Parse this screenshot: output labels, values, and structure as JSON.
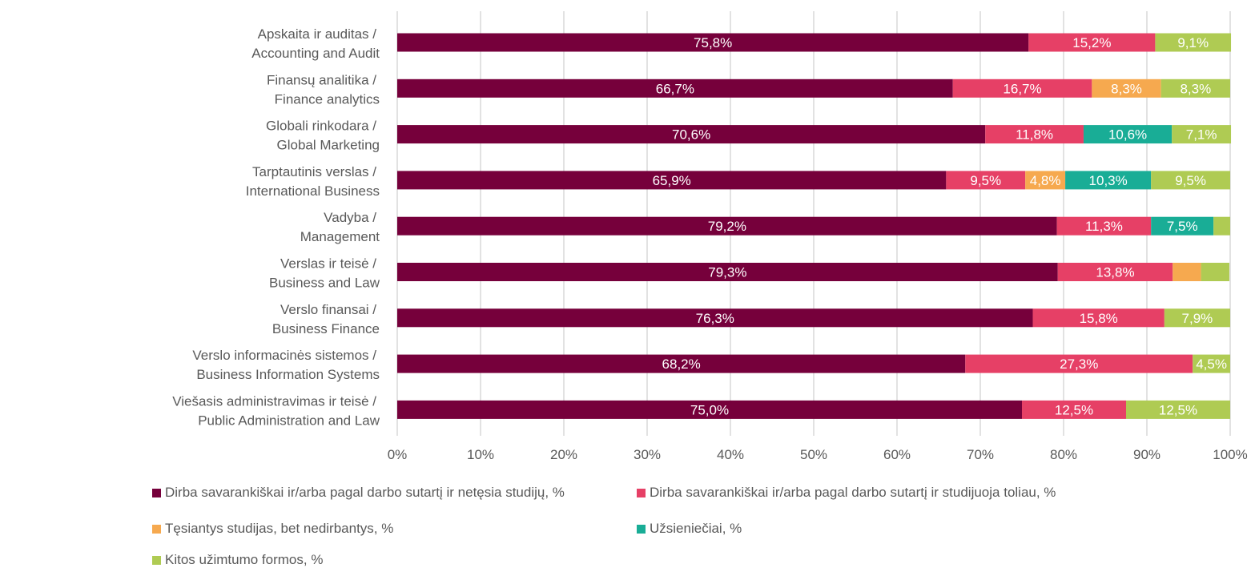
{
  "chart_data": {
    "type": "bar",
    "orientation": "horizontal",
    "stacked": true,
    "percent_stacked": true,
    "title": "",
    "xlabel": "",
    "ylabel": "",
    "xlim": [
      0,
      100
    ],
    "grid": true,
    "legend_position": "bottom",
    "x_ticks": [
      "0%",
      "10%",
      "20%",
      "30%",
      "40%",
      "50%",
      "60%",
      "70%",
      "80%",
      "90%",
      "100%"
    ],
    "categories": [
      [
        "Apskaita ir auditas /",
        "Accounting and Audit"
      ],
      [
        "Finansų analitika /",
        "Finance analytics"
      ],
      [
        "Globali rinkodara /",
        "Global Marketing"
      ],
      [
        "Tarptautinis verslas /",
        "International Business"
      ],
      [
        "Vadyba /",
        "Management"
      ],
      [
        "Verslas ir teisė /",
        "Business and Law"
      ],
      [
        "Verslo finansai /",
        "Business Finance"
      ],
      [
        "Verslo informacinės sistemos /",
        "Business Information Systems"
      ],
      [
        "Viešasis administravimas ir teisė /",
        "Public Administration and Law"
      ]
    ],
    "series": [
      {
        "name": "Dirba savarankiškai ir/arba pagal darbo sutartį ir netęsia studijų, %",
        "color": "#76003b",
        "values": [
          75.8,
          66.7,
          70.6,
          65.9,
          79.2,
          79.3,
          76.3,
          68.2,
          75.0
        ],
        "labels": [
          "75,8%",
          "66,7%",
          "70,6%",
          "65,9%",
          "79,2%",
          "79,3%",
          "76,3%",
          "68,2%",
          "75,0%"
        ]
      },
      {
        "name": "Dirba savarankiškai ir/arba pagal darbo sutartį ir studijuoja toliau, %",
        "color": "#e64066",
        "values": [
          15.2,
          16.7,
          11.8,
          9.5,
          11.3,
          13.8,
          15.8,
          27.3,
          12.5
        ],
        "labels": [
          "15,2%",
          "16,7%",
          "11,8%",
          "9,5%",
          "11,3%",
          "13,8%",
          "15,8%",
          "27,3%",
          "12,5%"
        ]
      },
      {
        "name": "Tęsiantys studijas, bet nedirbantys, %",
        "color": "#f6a94f",
        "values": [
          0,
          8.3,
          0,
          4.8,
          0,
          3.4,
          0,
          0,
          0
        ],
        "labels": [
          "",
          "8,3%",
          "",
          "4,8%",
          "",
          "",
          "",
          "",
          ""
        ]
      },
      {
        "name": "Užsieniečiai, %",
        "color": "#19ad96",
        "values": [
          0,
          0,
          10.6,
          10.3,
          7.5,
          0,
          0,
          0,
          0
        ],
        "labels": [
          "",
          "",
          "10,6%",
          "10,3%",
          "7,5%",
          "",
          "",
          "",
          ""
        ]
      },
      {
        "name": "Kitos užimtumo formos, %",
        "color": "#afcb53",
        "values": [
          9.1,
          8.3,
          7.1,
          9.5,
          2.0,
          3.4,
          7.9,
          4.5,
          12.5
        ],
        "labels": [
          "9,1%",
          "8,3%",
          "7,1%",
          "9,5%",
          "",
          "",
          "7,9%",
          "4,5%",
          "12,5%"
        ]
      }
    ]
  },
  "legend": {
    "items": [
      {
        "label": "Dirba savarankiškai ir/arba pagal darbo sutartį ir netęsia studijų, %",
        "color": "#76003b"
      },
      {
        "label": "Dirba savarankiškai ir/arba pagal darbo sutartį ir studijuoja toliau, %",
        "color": "#e64066"
      },
      {
        "label": "Tęsiantys studijas, bet nedirbantys, %",
        "color": "#f6a94f"
      },
      {
        "label": "Užsieniečiai, %",
        "color": "#19ad96"
      },
      {
        "label": "Kitos užimtumo formos, %",
        "color": "#afcb53"
      }
    ]
  },
  "colors": {
    "grid": "#d9d9d9",
    "axis_text": "#595959",
    "data_label": "#ffffff"
  }
}
